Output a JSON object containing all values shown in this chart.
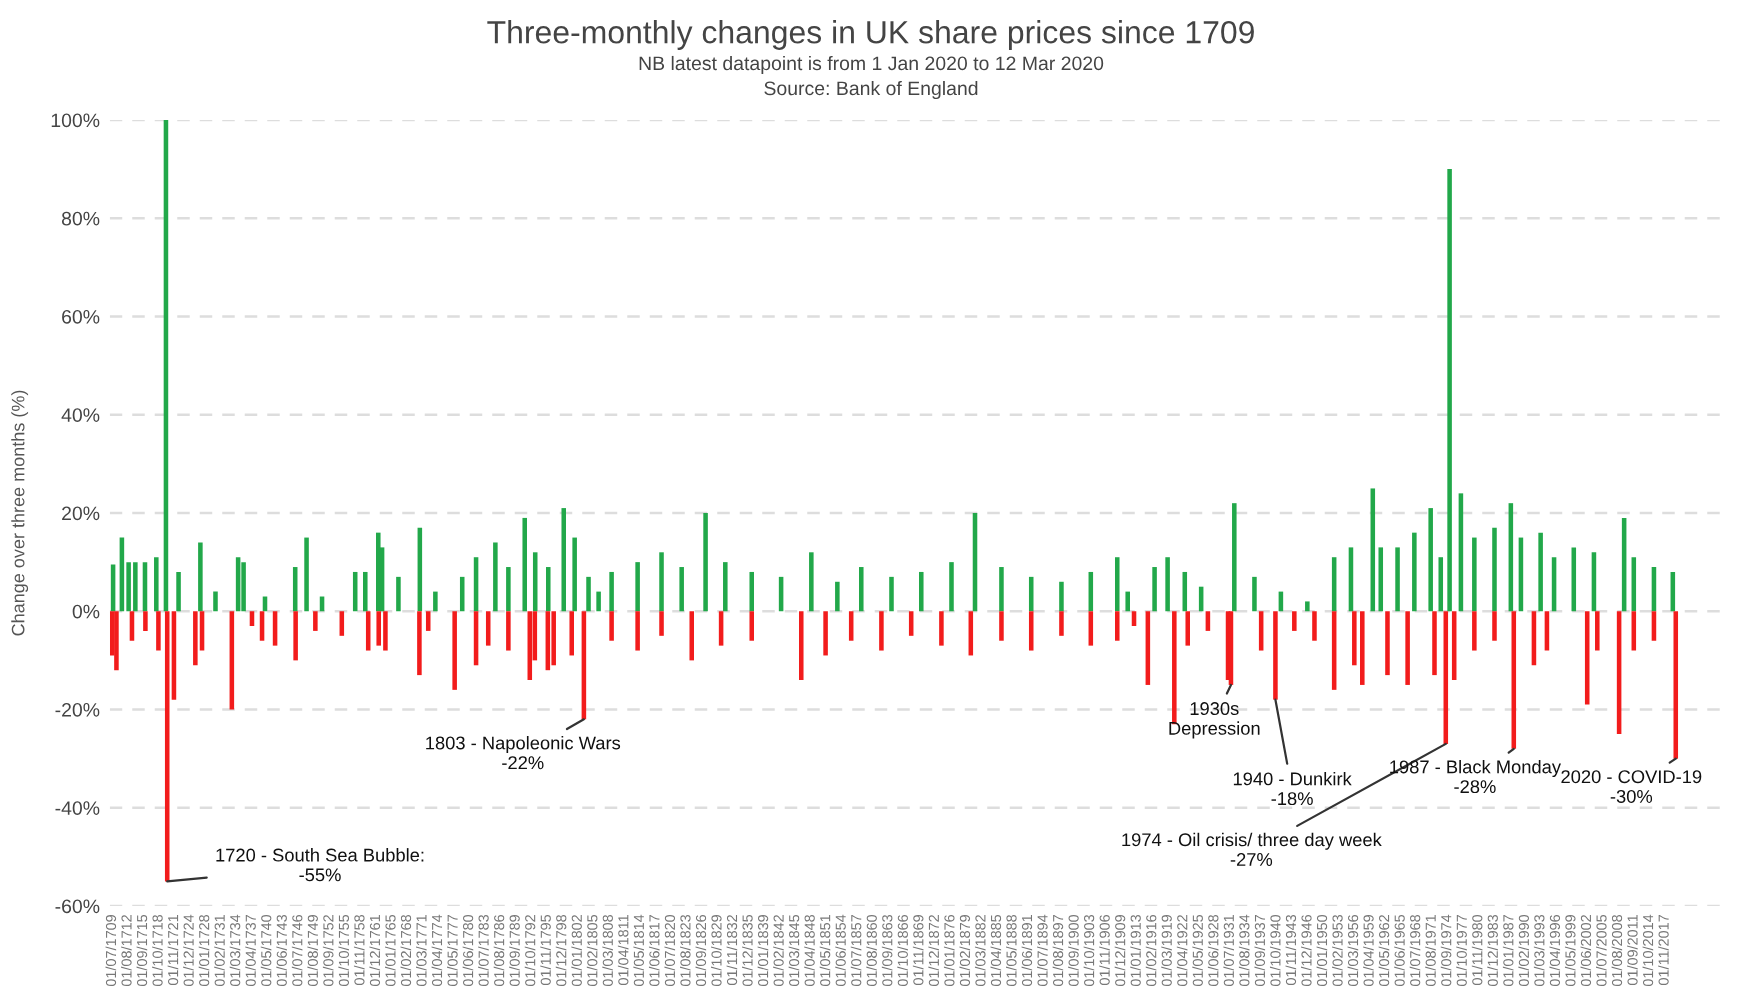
{
  "chart_data": {
    "type": "bar",
    "title": "Three-monthly changes in UK share prices since 1709",
    "subtitle": "NB latest datapoint is from 1 Jan 2020 to 12 Mar 2020",
    "ylabel": "Change over three months (%)",
    "annotations": [
      "Source: Bank of England",
      {
        "text": "1720 - South Sea Bubble:\n-55%",
        "x": "1720-06",
        "y": -55
      },
      {
        "text": "1803 - Napoleonic Wars\n-22%",
        "x": "1803-03",
        "y": -22
      },
      {
        "text": "1930s\nDepression",
        "x": "1931-09",
        "y": -15
      },
      {
        "text": "1940 - Dunkirk\n-18%",
        "x": "1940-07",
        "y": -18
      },
      {
        "text": "1974 - Oil crisis/ three day week\n-27%",
        "x": "1974-05",
        "y": -27
      },
      {
        "text": "1987 - Black Monday\n-28%",
        "x": "1987-11",
        "y": -28
      },
      {
        "text": "2020 - COVID-19\n-30%",
        "x": "2020-01",
        "y": -30
      }
    ],
    "series": [
      {
        "color": "#22a84a",
        "x": [
          "1709-09",
          "1711-06",
          "1712-10",
          "1714-02",
          "1716-01",
          "1718-04",
          "1720-03",
          "1722-09",
          "1727-01",
          "1730-01",
          "1734-07",
          "1735-08",
          "1739-11",
          "1745-11",
          "1748-02",
          "1751-03",
          "1757-10",
          "1759-10",
          "1762-05",
          "1763-02",
          "1766-05",
          "1770-08",
          "1773-09",
          "1779-01",
          "1781-10",
          "1785-08",
          "1788-03",
          "1791-06",
          "1793-07",
          "1796-02",
          "1799-03",
          "1801-05",
          "1804-02",
          "1806-02",
          "1808-09",
          "1813-11",
          "1818-08",
          "1822-08",
          "1827-05",
          "1831-04",
          "1836-07",
          "1842-05",
          "1848-05",
          "1853-07",
          "1858-04",
          "1864-04",
          "1870-03",
          "1876-03",
          "1880-11",
          "1886-02",
          "1892-01",
          "1898-01",
          "1903-11",
          "1909-02",
          "1911-03",
          "1916-07",
          "1919-02",
          "1922-07",
          "1925-10",
          "1932-05",
          "1936-05",
          "1941-08",
          "1946-11",
          "1952-03",
          "1955-07",
          "1959-11",
          "1961-06",
          "1964-10",
          "1968-02",
          "1971-05",
          "1973-05",
          "1975-02",
          "1977-05",
          "1980-01",
          "1984-01",
          "1987-04",
          "1989-04",
          "1993-03",
          "1995-11",
          "1999-10",
          "2003-10",
          "2009-10",
          "2011-09",
          "2015-09",
          "2019-06"
        ],
        "values": [
          9.5,
          15,
          10,
          10,
          10,
          11,
          100,
          8,
          14,
          4,
          11,
          10,
          3,
          9,
          15,
          3,
          8,
          8,
          16,
          13,
          7,
          17,
          4,
          7,
          11,
          14,
          9,
          19,
          12,
          9,
          21,
          15,
          7,
          4,
          8,
          10,
          12,
          9,
          20,
          10,
          8,
          7,
          12,
          6,
          9,
          7,
          8,
          10,
          20,
          9,
          7,
          6,
          8,
          11,
          4,
          9,
          11,
          8,
          5,
          22,
          7,
          4,
          2,
          11,
          13,
          25,
          13,
          13,
          16,
          21,
          11,
          90,
          24,
          15,
          17,
          22,
          15,
          16,
          11,
          13,
          12,
          19,
          11,
          9,
          8
        ]
      },
      {
        "color": "#f21c1c",
        "x": [
          "1709-07",
          "1710-05",
          "1713-06",
          "1716-02",
          "1718-09",
          "1720-06",
          "1721-10",
          "1726-01",
          "1727-05",
          "1733-04",
          "1737-04",
          "1739-04",
          "1741-11",
          "1745-12",
          "1749-11",
          "1755-02",
          "1760-05",
          "1762-06",
          "1763-10",
          "1770-07",
          "1772-04",
          "1777-07",
          "1781-10",
          "1784-03",
          "1788-03",
          "1792-06",
          "1793-06",
          "1796-01",
          "1797-03",
          "1800-10",
          "1803-03",
          "1808-09",
          "1813-11",
          "1818-08",
          "1824-08",
          "1830-06",
          "1836-07",
          "1846-05",
          "1851-03",
          "1856-04",
          "1862-04",
          "1868-03",
          "1874-03",
          "1880-01",
          "1886-02",
          "1892-01",
          "1898-01",
          "1903-11",
          "1909-02",
          "1912-06",
          "1915-03",
          "1920-06",
          "1923-02",
          "1927-02",
          "1931-02",
          "1931-09",
          "1937-09",
          "1940-07",
          "1944-04",
          "1948-04",
          "1952-03",
          "1956-03",
          "1957-10",
          "1962-10",
          "1966-10",
          "1972-02",
          "1974-05",
          "1976-01",
          "1980-01",
          "1984-01",
          "1987-11",
          "1991-11",
          "1994-06",
          "2002-06",
          "2004-06",
          "2008-10",
          "2011-09",
          "2015-09",
          "2020-01"
        ],
        "values": [
          -9,
          -12,
          -6,
          -4,
          -8,
          -55,
          -18,
          -11,
          -8,
          -20,
          -3,
          -6,
          -7,
          -10,
          -4,
          -5,
          -8,
          -7,
          -8,
          -13,
          -4,
          -16,
          -11,
          -7,
          -8,
          -14,
          -10,
          -12,
          -11,
          -9,
          -22,
          -6,
          -8,
          -5,
          -10,
          -7,
          -6,
          -14,
          -9,
          -6,
          -8,
          -5,
          -7,
          -9,
          -6,
          -8,
          -5,
          -7,
          -6,
          -3,
          -15,
          -23,
          -7,
          -4,
          -14,
          -15,
          -8,
          -18,
          -4,
          -6,
          -16,
          -11,
          -15,
          -13,
          -15,
          -13,
          -27,
          -14,
          -8,
          -6,
          -28,
          -11,
          -8,
          -19,
          -8,
          -25,
          -8,
          -6,
          -30
        ]
      }
    ],
    "xlim": [
      "1709-01",
      "2029-01"
    ],
    "ylim": [
      -60,
      100
    ],
    "yticks": [
      {
        "value": -60,
        "label": "-60%"
      },
      {
        "value": -40,
        "label": "-40%"
      },
      {
        "value": -20,
        "label": "-20%"
      },
      {
        "value": 0,
        "label": "0%"
      },
      {
        "value": 20,
        "label": "20%"
      },
      {
        "value": 40,
        "label": "40%"
      },
      {
        "value": 60,
        "label": "60%"
      },
      {
        "value": 80,
        "label": "80%"
      },
      {
        "value": 100,
        "label": "100%"
      }
    ],
    "xticks": [
      {
        "value": "1709-07",
        "label": "01/07/1709"
      },
      {
        "value": "1712-08",
        "label": "01/08/1712"
      },
      {
        "value": "1715-09",
        "label": "01/09/1715"
      },
      {
        "value": "1718-10",
        "label": "01/10/1718"
      },
      {
        "value": "1721-11",
        "label": "01/11/1721"
      },
      {
        "value": "1724-12",
        "label": "01/12/1724"
      },
      {
        "value": "1728-01",
        "label": "01/01/1728"
      },
      {
        "value": "1731-02",
        "label": "01/02/1731"
      },
      {
        "value": "1734-03",
        "label": "01/03/1734"
      },
      {
        "value": "1737-04",
        "label": "01/04/1737"
      },
      {
        "value": "1740-05",
        "label": "01/05/1740"
      },
      {
        "value": "1743-06",
        "label": "01/06/1743"
      },
      {
        "value": "1746-07",
        "label": "01/07/1746"
      },
      {
        "value": "1749-08",
        "label": "01/08/1749"
      },
      {
        "value": "1752-09",
        "label": "01/09/1752"
      },
      {
        "value": "1755-10",
        "label": "01/10/1755"
      },
      {
        "value": "1758-11",
        "label": "01/11/1758"
      },
      {
        "value": "1761-12",
        "label": "01/12/1761"
      },
      {
        "value": "1765-01",
        "label": "01/01/1765"
      },
      {
        "value": "1768-02",
        "label": "01/02/1768"
      },
      {
        "value": "1771-03",
        "label": "01/03/1771"
      },
      {
        "value": "1774-04",
        "label": "01/04/1774"
      },
      {
        "value": "1777-05",
        "label": "01/05/1777"
      },
      {
        "value": "1780-06",
        "label": "01/06/1780"
      },
      {
        "value": "1783-07",
        "label": "01/07/1783"
      },
      {
        "value": "1786-08",
        "label": "01/08/1786"
      },
      {
        "value": "1789-09",
        "label": "01/09/1789"
      },
      {
        "value": "1792-10",
        "label": "01/10/1792"
      },
      {
        "value": "1795-11",
        "label": "01/11/1795"
      },
      {
        "value": "1798-12",
        "label": "01/12/1798"
      },
      {
        "value": "1802-01",
        "label": "01/01/1802"
      },
      {
        "value": "1805-02",
        "label": "01/02/1805"
      },
      {
        "value": "1808-03",
        "label": "01/03/1808"
      },
      {
        "value": "1811-04",
        "label": "01/04/1811"
      },
      {
        "value": "1814-05",
        "label": "01/05/1814"
      },
      {
        "value": "1817-06",
        "label": "01/06/1817"
      },
      {
        "value": "1820-07",
        "label": "01/07/1820"
      },
      {
        "value": "1823-08",
        "label": "01/08/1823"
      },
      {
        "value": "1826-09",
        "label": "01/09/1826"
      },
      {
        "value": "1829-10",
        "label": "01/10/1829"
      },
      {
        "value": "1832-11",
        "label": "01/11/1832"
      },
      {
        "value": "1835-12",
        "label": "01/12/1835"
      },
      {
        "value": "1839-01",
        "label": "01/01/1839"
      },
      {
        "value": "1842-02",
        "label": "01/02/1842"
      },
      {
        "value": "1845-03",
        "label": "01/03/1845"
      },
      {
        "value": "1848-04",
        "label": "01/04/1848"
      },
      {
        "value": "1851-05",
        "label": "01/05/1851"
      },
      {
        "value": "1854-06",
        "label": "01/06/1854"
      },
      {
        "value": "1857-07",
        "label": "01/07/1857"
      },
      {
        "value": "1860-08",
        "label": "01/08/1860"
      },
      {
        "value": "1863-09",
        "label": "01/09/1863"
      },
      {
        "value": "1866-10",
        "label": "01/10/1866"
      },
      {
        "value": "1869-11",
        "label": "01/11/1869"
      },
      {
        "value": "1872-12",
        "label": "01/12/1872"
      },
      {
        "value": "1876-01",
        "label": "01/01/1876"
      },
      {
        "value": "1879-02",
        "label": "01/02/1879"
      },
      {
        "value": "1882-03",
        "label": "01/03/1882"
      },
      {
        "value": "1885-04",
        "label": "01/04/1885"
      },
      {
        "value": "1888-05",
        "label": "01/05/1888"
      },
      {
        "value": "1891-06",
        "label": "01/06/1891"
      },
      {
        "value": "1894-07",
        "label": "01/07/1894"
      },
      {
        "value": "1897-08",
        "label": "01/08/1897"
      },
      {
        "value": "1900-09",
        "label": "01/09/1900"
      },
      {
        "value": "1903-10",
        "label": "01/10/1903"
      },
      {
        "value": "1906-11",
        "label": "01/11/1906"
      },
      {
        "value": "1909-12",
        "label": "01/12/1909"
      },
      {
        "value": "1913-01",
        "label": "01/01/1913"
      },
      {
        "value": "1916-02",
        "label": "01/02/1916"
      },
      {
        "value": "1919-03",
        "label": "01/03/1919"
      },
      {
        "value": "1922-04",
        "label": "01/04/1922"
      },
      {
        "value": "1925-05",
        "label": "01/05/1925"
      },
      {
        "value": "1928-06",
        "label": "01/06/1928"
      },
      {
        "value": "1931-07",
        "label": "01/07/1931"
      },
      {
        "value": "1934-08",
        "label": "01/08/1934"
      },
      {
        "value": "1937-09",
        "label": "01/09/1937"
      },
      {
        "value": "1940-10",
        "label": "01/10/1940"
      },
      {
        "value": "1943-11",
        "label": "01/11/1943"
      },
      {
        "value": "1946-12",
        "label": "01/12/1946"
      },
      {
        "value": "1950-01",
        "label": "01/01/1950"
      },
      {
        "value": "1953-02",
        "label": "01/02/1953"
      },
      {
        "value": "1956-03",
        "label": "01/03/1956"
      },
      {
        "value": "1959-04",
        "label": "01/04/1959"
      },
      {
        "value": "1962-05",
        "label": "01/05/1962"
      },
      {
        "value": "1965-06",
        "label": "01/06/1965"
      },
      {
        "value": "1968-07",
        "label": "01/07/1968"
      },
      {
        "value": "1971-08",
        "label": "01/08/1971"
      },
      {
        "value": "1974-09",
        "label": "01/09/1974"
      },
      {
        "value": "1977-10",
        "label": "01/10/1977"
      },
      {
        "value": "1980-11",
        "label": "01/11/1980"
      },
      {
        "value": "1983-12",
        "label": "01/12/1983"
      },
      {
        "value": "1987-01",
        "label": "01/01/1987"
      },
      {
        "value": "1990-02",
        "label": "01/02/1990"
      },
      {
        "value": "1993-03",
        "label": "01/03/1993"
      },
      {
        "value": "1996-04",
        "label": "01/04/1996"
      },
      {
        "value": "1999-05",
        "label": "01/05/1999"
      },
      {
        "value": "2002-06",
        "label": "01/06/2002"
      },
      {
        "value": "2005-07",
        "label": "01/07/2005"
      },
      {
        "value": "2008-08",
        "label": "01/08/2008"
      },
      {
        "value": "2011-09",
        "label": "01/09/2011"
      },
      {
        "value": "2014-10",
        "label": "01/10/2014"
      },
      {
        "value": "2017-11",
        "label": "01/11/2017"
      }
    ],
    "grid": "y"
  }
}
